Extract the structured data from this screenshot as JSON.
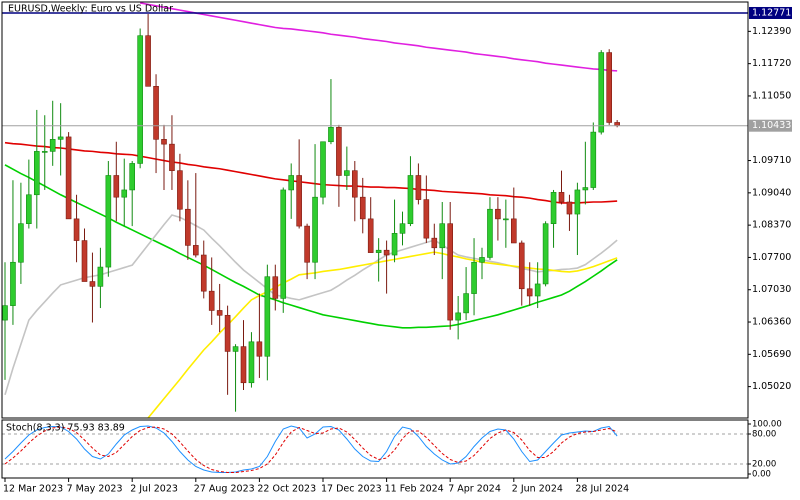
{
  "chart_data": [
    {
      "type": "candlestick",
      "title": "EURUSD,Weekly: Euro vs US Dollar",
      "categories": [
        "12 Mar 2023",
        null,
        null,
        null,
        null,
        null,
        null,
        null,
        "7 May 2023",
        null,
        null,
        null,
        null,
        null,
        null,
        null,
        "2 Jul 2023",
        null,
        null,
        null,
        null,
        null,
        null,
        null,
        "27 Aug 2023",
        null,
        null,
        null,
        null,
        null,
        null,
        null,
        "22 Oct 2023",
        null,
        null,
        null,
        null,
        null,
        null,
        null,
        "17 Dec 2023",
        null,
        null,
        null,
        null,
        null,
        null,
        null,
        "11 Feb 2024",
        null,
        null,
        null,
        null,
        null,
        null,
        null,
        "7 Apr 2024",
        null,
        null,
        null,
        null,
        null,
        null,
        null,
        "2 Jun 2024",
        null,
        null,
        null,
        null,
        null,
        null,
        null,
        "28 Jul 2024",
        null,
        null,
        null,
        null,
        null
      ],
      "open": [
        1.064,
        1.067,
        1.076,
        1.084,
        1.09,
        1.099,
        1.099,
        1.1015,
        1.102,
        1.085,
        1.0805,
        1.072,
        1.071,
        1.075,
        1.094,
        1.0895,
        1.091,
        1.0965,
        1.123,
        1.1125,
        1.1015,
        1.1005,
        1.095,
        1.087,
        1.0795,
        1.0775,
        1.07,
        1.066,
        1.065,
        1.0575,
        1.0585,
        1.051,
        1.0595,
        1.0565,
        1.073,
        1.0685,
        1.091,
        1.094,
        1.0835,
        1.076,
        1.0895,
        1.101,
        1.104,
        1.094,
        1.095,
        1.0895,
        1.085,
        1.078,
        1.0785,
        1.0775,
        1.082,
        1.084,
        1.094,
        1.089,
        1.081,
        1.079,
        1.084,
        1.064,
        1.0655,
        1.0695,
        1.076,
        1.077,
        1.087,
        1.085,
        1.085,
        1.08,
        1.0705,
        1.069,
        1.0715,
        1.084,
        1.0905,
        1.0885,
        1.086,
        1.091,
        1.0915,
        1.103,
        1.1195,
        1.105
      ],
      "high": [
        1.076,
        1.093,
        1.0925,
        1.0973,
        1.1076,
        1.1065,
        1.1095,
        1.109,
        1.103,
        1.09,
        1.083,
        1.078,
        1.079,
        1.097,
        1.101,
        1.0975,
        1.097,
        1.1245,
        1.1275,
        1.115,
        1.1045,
        1.1065,
        1.0985,
        1.093,
        1.0945,
        1.0805,
        1.077,
        1.0715,
        1.067,
        1.059,
        1.064,
        1.0615,
        1.0695,
        1.0755,
        1.0755,
        1.0915,
        1.0965,
        1.1015,
        1.084,
        1.1005,
        1.101,
        1.114,
        1.1045,
        1.1,
        1.097,
        1.0935,
        1.0895,
        1.081,
        1.0805,
        1.089,
        1.0865,
        1.098,
        1.0965,
        1.094,
        1.084,
        1.0885,
        1.0885,
        1.069,
        1.075,
        1.081,
        1.079,
        1.0895,
        1.0895,
        1.089,
        1.0915,
        1.0805,
        1.076,
        1.076,
        1.0845,
        1.091,
        1.095,
        1.09,
        1.0925,
        1.101,
        1.105,
        1.12,
        1.1202,
        1.1055
      ],
      "low": [
        1.0516,
        1.063,
        1.0715,
        1.083,
        1.083,
        1.091,
        1.096,
        1.094,
        1.085,
        1.076,
        1.072,
        1.0635,
        1.0665,
        1.073,
        1.0845,
        1.0835,
        1.0835,
        1.0955,
        1.1125,
        1.0945,
        1.091,
        1.091,
        1.0845,
        1.0765,
        1.077,
        1.0685,
        1.063,
        1.0615,
        1.0485,
        1.045,
        1.0495,
        1.05,
        1.052,
        1.0515,
        1.066,
        1.0655,
        1.085,
        1.083,
        1.0725,
        1.0725,
        1.088,
        1.1005,
        1.0875,
        1.091,
        1.0845,
        1.082,
        1.078,
        1.072,
        1.0695,
        1.076,
        1.0795,
        1.0835,
        1.088,
        1.08,
        1.0775,
        1.0725,
        1.062,
        1.06,
        1.064,
        1.065,
        1.0725,
        1.0765,
        1.0805,
        1.079,
        1.08,
        1.067,
        1.067,
        1.0665,
        1.071,
        1.079,
        1.088,
        1.0825,
        1.0775,
        1.088,
        1.091,
        1.1025,
        1.1045,
        1.104
      ],
      "close": [
        1.067,
        1.076,
        1.084,
        1.09,
        1.099,
        1.099,
        1.1015,
        1.102,
        1.085,
        1.0805,
        1.072,
        1.071,
        1.075,
        1.094,
        1.0895,
        1.091,
        1.0965,
        1.123,
        1.1125,
        1.1015,
        1.1005,
        1.095,
        1.087,
        1.0795,
        1.0775,
        1.07,
        1.066,
        1.065,
        1.0575,
        1.0585,
        1.051,
        1.0595,
        1.0565,
        1.073,
        1.0685,
        1.091,
        1.094,
        1.0835,
        1.076,
        1.0895,
        1.101,
        1.104,
        1.094,
        1.095,
        1.0895,
        1.085,
        1.078,
        1.0785,
        1.0775,
        1.082,
        1.084,
        1.094,
        1.089,
        1.081,
        1.079,
        1.084,
        1.064,
        1.0655,
        1.0695,
        1.076,
        1.077,
        1.087,
        1.085,
        1.085,
        1.08,
        1.0705,
        1.069,
        1.0715,
        1.084,
        1.0905,
        1.0885,
        1.086,
        1.091,
        1.0915,
        1.103,
        1.1195,
        1.105,
        1.10433
      ],
      "up_color": "#2ecc2e",
      "up_edge": "#108a10",
      "down_color": "#c0392b",
      "down_edge": "#7a1a10",
      "overlays": [
        {
          "color": "#e020e0",
          "values": [
            null,
            null,
            null,
            null,
            null,
            null,
            null,
            null,
            null,
            null,
            null,
            null,
            null,
            null,
            null,
            null,
            null,
            1.1298,
            1.1295,
            1.1292,
            1.1289,
            1.1286,
            1.1283,
            1.128,
            1.1277,
            1.1274,
            1.1271,
            1.1268,
            1.1265,
            1.1262,
            1.1259,
            1.1256,
            1.1253,
            1.125,
            1.1247,
            1.1245,
            1.1244,
            1.1242,
            1.124,
            1.1238,
            1.1236,
            1.1233,
            1.1231,
            1.1229,
            1.1227,
            1.1224,
            1.1222,
            1.122,
            1.1218,
            1.1215,
            1.1213,
            1.1211,
            1.1209,
            1.1206,
            1.1204,
            1.1202,
            1.12,
            1.1198,
            1.1196,
            1.1193,
            1.1191,
            1.1189,
            1.1187,
            1.1185,
            1.1182,
            1.118,
            1.1178,
            1.1176,
            1.1173,
            1.1171,
            1.1169,
            1.1167,
            1.1165,
            1.1163,
            1.1161,
            1.116,
            1.1158,
            1.1157
          ]
        },
        {
          "color": "#e00000",
          "values": [
            1.1008,
            1.1006,
            1.1005,
            1.1003,
            1.1001,
            1.1,
            1.0998,
            1.0997,
            1.0995,
            1.0993,
            1.0991,
            1.099,
            1.0988,
            1.0987,
            1.0985,
            1.0984,
            1.0983,
            1.098,
            1.0977,
            1.0974,
            1.0971,
            1.0968,
            1.0966,
            1.0963,
            1.0961,
            1.0958,
            1.0956,
            1.0954,
            1.0951,
            1.0948,
            1.0945,
            1.0942,
            1.0939,
            1.0936,
            1.0933,
            1.0931,
            1.0929,
            1.0927,
            1.0925,
            1.0923,
            1.0921,
            1.092,
            1.0919,
            1.0918,
            1.0918,
            1.0917,
            1.0916,
            1.0916,
            1.0915,
            1.0915,
            1.0914,
            1.0913,
            1.0911,
            1.091,
            1.0909,
            1.0907,
            1.0906,
            1.0905,
            1.0904,
            1.0903,
            1.0902,
            1.09,
            1.0899,
            1.0898,
            1.0896,
            1.0895,
            1.0893,
            1.089,
            1.0888,
            1.0885,
            1.0883,
            1.0883,
            1.0883,
            1.0884,
            1.0885,
            1.0885,
            1.0886,
            1.0887
          ]
        },
        {
          "color": "#00d000",
          "values": [
            1.0962,
            1.0953,
            1.0944,
            1.0936,
            1.0927,
            1.0918,
            1.0909,
            1.09,
            1.0892,
            1.0884,
            1.0876,
            1.0868,
            1.086,
            1.0852,
            1.0843,
            1.0835,
            1.0827,
            1.0819,
            1.0811,
            1.0803,
            1.0795,
            1.0787,
            1.0778,
            1.077,
            1.0762,
            1.0754,
            1.0745,
            1.0736,
            1.0727,
            1.0718,
            1.071,
            1.0701,
            1.0692,
            1.0687,
            1.0682,
            1.0676,
            1.0671,
            1.0666,
            1.0661,
            1.0656,
            1.0651,
            1.0648,
            1.0645,
            1.0642,
            1.0639,
            1.0636,
            1.0633,
            1.063,
            1.0628,
            1.0626,
            1.0624,
            1.0624,
            1.0625,
            1.0625,
            1.0626,
            1.0627,
            1.0628,
            1.0631,
            1.0635,
            1.0639,
            1.0643,
            1.0647,
            1.0651,
            1.0656,
            1.0661,
            1.0666,
            1.0671,
            1.0677,
            1.0682,
            1.0687,
            1.0692,
            1.07,
            1.071,
            1.072,
            1.0731,
            1.0742,
            1.0754,
            1.0765
          ]
        },
        {
          "color": "#c4c4c4",
          "values": [
            1.0485,
            1.054,
            1.059,
            1.064,
            1.066,
            1.0678,
            1.0696,
            1.0713,
            1.0718,
            1.0723,
            1.0728,
            1.0731,
            1.0734,
            1.0739,
            1.0744,
            1.0749,
            1.0754,
            1.0775,
            1.0796,
            1.0817,
            1.0838,
            1.0858,
            1.0853,
            1.0845,
            1.0836,
            1.0827,
            1.081,
            1.0794,
            1.0777,
            1.076,
            1.0744,
            1.0731,
            1.0718,
            1.0705,
            1.0692,
            1.0689,
            1.0685,
            1.0682,
            1.0687,
            1.0692,
            1.0697,
            1.0702,
            1.0712,
            1.0723,
            1.0733,
            1.0744,
            1.0754,
            1.0765,
            1.0775,
            1.0781,
            1.0786,
            1.0791,
            1.0796,
            1.0801,
            1.0806,
            1.0796,
            1.0785,
            1.0775,
            1.0771,
            1.0768,
            1.0765,
            1.0762,
            1.0759,
            1.0755,
            1.0751,
            1.0747,
            1.0744,
            1.074,
            1.0742,
            1.0743,
            1.0745,
            1.0746,
            1.0748,
            1.0755,
            1.0767,
            1.0779,
            1.0792,
            1.0806
          ]
        },
        {
          "color": "#ffee00",
          "values": [
            null,
            null,
            null,
            null,
            null,
            null,
            null,
            null,
            null,
            null,
            null,
            null,
            null,
            null,
            null,
            null,
            null,
            null,
            1.0437,
            1.0457,
            1.0477,
            1.0497,
            1.0517,
            1.0538,
            1.0558,
            1.0578,
            1.0595,
            1.0613,
            1.063,
            1.0647,
            1.0665,
            1.0682,
            1.0691,
            1.0699,
            1.0708,
            1.0717,
            1.0725,
            1.0734,
            1.0736,
            1.0738,
            1.0741,
            1.0743,
            1.0745,
            1.0748,
            1.0751,
            1.0754,
            1.0757,
            1.076,
            1.0763,
            1.0766,
            1.0769,
            1.0772,
            1.0775,
            1.0778,
            1.0781,
            1.0778,
            1.0774,
            1.0771,
            1.0767,
            1.0764,
            1.076,
            1.0758,
            1.0756,
            1.0754,
            1.0752,
            1.075,
            1.0748,
            1.0746,
            1.0745,
            1.0743,
            1.0741,
            1.074,
            1.0742,
            1.0746,
            1.0751,
            1.0757,
            1.0763,
            1.0769
          ]
        }
      ],
      "levels": [
        {
          "value": 1.12771,
          "color": "#000080"
        },
        {
          "value": 1.10433,
          "color": "#a0a0a0"
        }
      ],
      "ylim": [
        1.04369,
        1.12999
      ],
      "yticks": [
        {
          "value": 1.1239,
          "label": "1.12390"
        },
        {
          "value": 1.1172,
          "label": "1.11720"
        },
        {
          "value": 1.1105,
          "label": "1.11050"
        },
        {
          "value": 1.0971,
          "label": "1.09710"
        },
        {
          "value": 1.0904,
          "label": "1.09040"
        },
        {
          "value": 1.0837,
          "label": "1.08370"
        },
        {
          "value": 1.077,
          "label": "1.07700"
        },
        {
          "value": 1.0703,
          "label": "1.07030"
        },
        {
          "value": 1.0636,
          "label": "1.06360"
        },
        {
          "value": 1.0569,
          "label": "1.05690"
        },
        {
          "value": 1.0502,
          "label": "1.05020"
        }
      ]
    },
    {
      "type": "line",
      "title": "Stoch(8,3,3) 75.93 83.89",
      "series": [
        {
          "color": "#1e90ff",
          "dashed": false,
          "values": [
            30,
            45,
            62,
            78,
            88,
            93,
            95,
            94,
            85,
            70,
            50,
            35,
            30,
            40,
            60,
            78,
            88,
            95,
            96,
            92,
            82,
            65,
            45,
            28,
            15,
            8,
            4,
            3,
            3,
            4,
            8,
            10,
            15,
            35,
            65,
            90,
            96,
            92,
            72,
            80,
            94,
            95,
            88,
            70,
            50,
            35,
            26,
            25,
            45,
            75,
            94,
            90,
            75,
            55,
            40,
            28,
            20,
            22,
            35,
            55,
            72,
            85,
            90,
            88,
            70,
            45,
            25,
            28,
            45,
            62,
            78,
            82,
            84,
            86,
            85,
            92,
            95,
            75.93
          ]
        },
        {
          "color": "#e00000",
          "dashed": true,
          "values": [
            20,
            32,
            46,
            62,
            76,
            86,
            92,
            94,
            91,
            83,
            68,
            52,
            38,
            35,
            43,
            59,
            75,
            87,
            93,
            94,
            90,
            80,
            64,
            46,
            29,
            17,
            9,
            5,
            3,
            3,
            5,
            7,
            11,
            20,
            38,
            63,
            84,
            93,
            87,
            81,
            82,
            90,
            92,
            84,
            69,
            52,
            37,
            29,
            32,
            48,
            71,
            86,
            86,
            73,
            57,
            41,
            29,
            23,
            26,
            37,
            54,
            71,
            82,
            88,
            83,
            68,
            47,
            33,
            33,
            45,
            62,
            74,
            81,
            84,
            85,
            88,
            91,
            83.89
          ]
        }
      ],
      "levels": [
        80,
        20
      ],
      "ylim": [
        -8,
        108
      ],
      "yticks": [
        {
          "value": 100,
          "label": "100.00"
        },
        {
          "value": 80,
          "label": "80.00"
        },
        {
          "value": 20,
          "label": "20.00"
        },
        {
          "value": 0,
          "label": "0.00"
        }
      ]
    }
  ]
}
